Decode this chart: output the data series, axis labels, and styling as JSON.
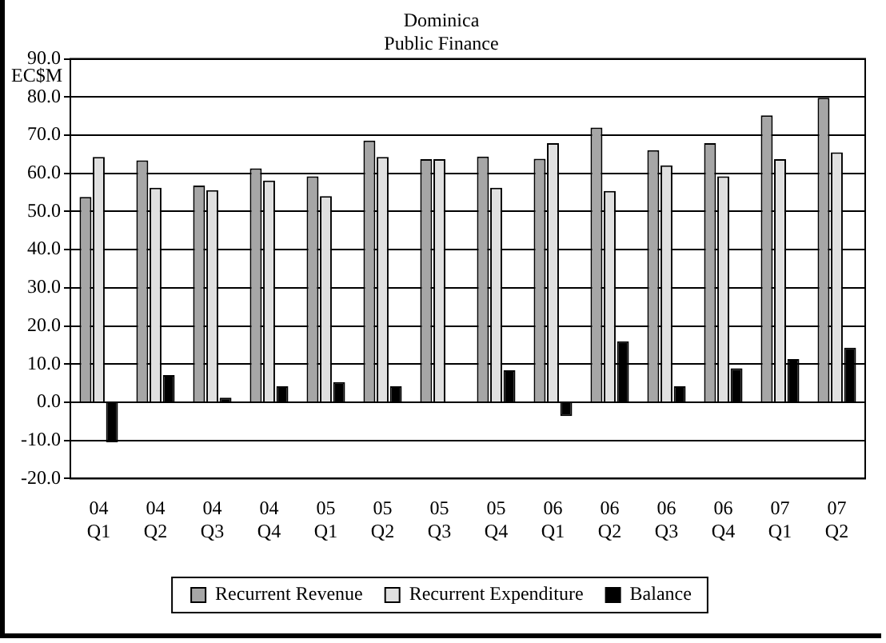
{
  "chart_data": {
    "type": "bar",
    "title": "Dominica",
    "subtitle": "Public Finance",
    "ylabel": "EC$M",
    "categories": [
      "04 Q1",
      "04 Q2",
      "04 Q3",
      "04 Q4",
      "05 Q1",
      "05 Q2",
      "05 Q3",
      "05 Q4",
      "06 Q1",
      "06 Q2",
      "06 Q3",
      "06 Q4",
      "07 Q1",
      "07 Q2"
    ],
    "series": [
      {
        "name": "Recurrent Revenue",
        "color": "#a6a6a6",
        "values": [
          53.8,
          63.4,
          56.8,
          61.3,
          59.2,
          68.6,
          63.7,
          64.4,
          63.8,
          72.0,
          66.1,
          67.9,
          75.2,
          79.8
        ]
      },
      {
        "name": "Recurrent Expenditure",
        "color": "#e0e0e0",
        "values": [
          64.3,
          56.2,
          55.6,
          58.1,
          54.0,
          64.3,
          63.7,
          56.2,
          67.9,
          55.4,
          62.1,
          59.2,
          63.7,
          65.5
        ]
      },
      {
        "name": "Balance",
        "color": "#000000",
        "values": [
          -10.5,
          7.1,
          1.2,
          4.2,
          5.3,
          4.2,
          0.0,
          8.4,
          -3.6,
          16.0,
          4.2,
          8.9,
          11.3,
          14.3
        ]
      }
    ],
    "ylim": [
      -20,
      90
    ],
    "yticks": [
      {
        "value": -20,
        "label": "-20.0"
      },
      {
        "value": -10,
        "label": "-10.0"
      },
      {
        "value": 0,
        "label": "0.0"
      },
      {
        "value": 10,
        "label": "10.0"
      },
      {
        "value": 20,
        "label": "20.0"
      },
      {
        "value": 30,
        "label": "30.0"
      },
      {
        "value": 40,
        "label": "40.0"
      },
      {
        "value": 50,
        "label": "50.0"
      },
      {
        "value": 60,
        "label": "60.0"
      },
      {
        "value": 70,
        "label": "70.0"
      },
      {
        "value": 80,
        "label": "80.0"
      },
      {
        "value": 90,
        "label": "90.0"
      }
    ],
    "grid": "y",
    "legend": "bottom"
  }
}
